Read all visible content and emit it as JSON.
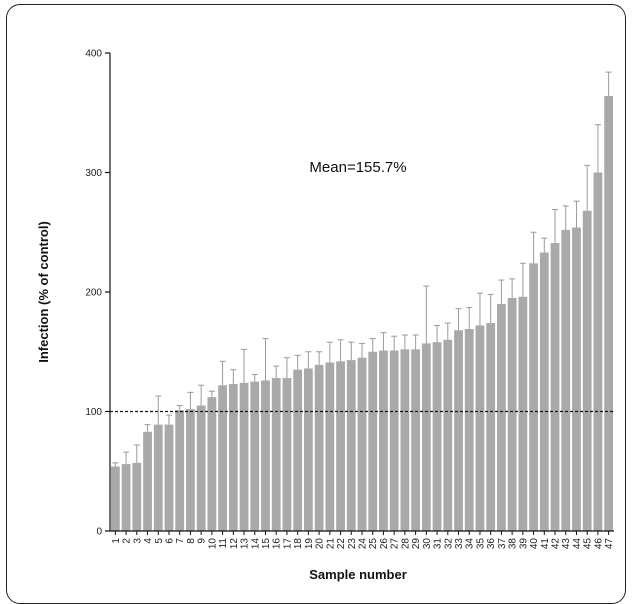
{
  "chart_data": {
    "type": "bar",
    "xlabel": "Sample number",
    "ylabel": "Infection (% of control)",
    "annotation": "Mean=155.7%",
    "ylim": [
      0,
      400
    ],
    "yticks": [
      0,
      100,
      200,
      300,
      400
    ],
    "reference_line": 100,
    "categories": [
      "1",
      "2",
      "3",
      "4",
      "5",
      "6",
      "7",
      "8",
      "9",
      "10",
      "11",
      "12",
      "13",
      "14",
      "15",
      "16",
      "17",
      "18",
      "19",
      "20",
      "21",
      "22",
      "23",
      "24",
      "25",
      "26",
      "27",
      "28",
      "29",
      "30",
      "31",
      "32",
      "33",
      "34",
      "35",
      "36",
      "37",
      "38",
      "39",
      "40",
      "41",
      "42",
      "43",
      "44",
      "45",
      "46",
      "47"
    ],
    "values": [
      54,
      56,
      57,
      83,
      89,
      89,
      101,
      102,
      105,
      112,
      122,
      123,
      124,
      125,
      126,
      128,
      128,
      135,
      136,
      139,
      141,
      142,
      143,
      145,
      150,
      151,
      151,
      152,
      152,
      157,
      158,
      160,
      168,
      169,
      172,
      174,
      190,
      195,
      196,
      224,
      233,
      241,
      252,
      254,
      268,
      300,
      364
    ],
    "errors": [
      3,
      10,
      15,
      6,
      24,
      8,
      4,
      14,
      17,
      5,
      20,
      12,
      28,
      6,
      35,
      10,
      17,
      12,
      14,
      11,
      17,
      18,
      15,
      12,
      11,
      15,
      12,
      12,
      12,
      48,
      14,
      14,
      18,
      18,
      27,
      24,
      20,
      16,
      28,
      26,
      12,
      28,
      20,
      22,
      38,
      40,
      20
    ],
    "bar_color": "#a9a9a9",
    "grid": false,
    "legend": "none"
  }
}
